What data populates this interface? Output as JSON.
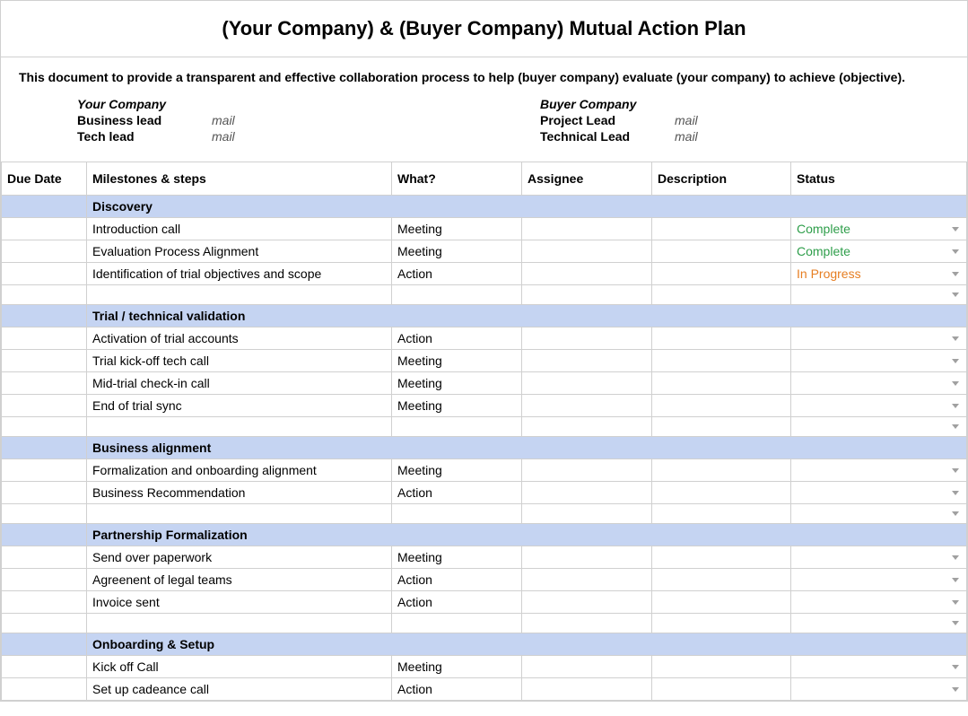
{
  "title": "(Your Company) & (Buyer Company) Mutual Action Plan",
  "intro": "This document to provide a transparent and effective collaboration process to help (buyer company) evaluate (your company) to achieve (objective).",
  "your_company": {
    "heading": "Your Company",
    "lead1_role": "Business lead",
    "lead1_mail": "mail",
    "lead2_role": "Tech lead",
    "lead2_mail": "mail"
  },
  "buyer_company": {
    "heading": "Buyer Company",
    "lead1_role": "Project Lead",
    "lead1_mail": "mail",
    "lead2_role": "Technical Lead",
    "lead2_mail": "mail"
  },
  "columns": {
    "due_date": "Due Date",
    "milestones": "Milestones & steps",
    "what": "What?",
    "assignee": "Assignee",
    "description": "Description",
    "status": "Status"
  },
  "status_labels": {
    "complete": "Complete",
    "in_progress": "In Progress"
  },
  "colors": {
    "section_bg": "#c5d4f2",
    "border": "#d0d0d0",
    "status_complete": "#2e9e4a",
    "status_progress": "#e67e22",
    "chevron": "#a0a0a0"
  },
  "sections": [
    {
      "name": "Discovery",
      "rows": [
        {
          "milestone": "Introduction call",
          "what": "Meeting",
          "status": "complete"
        },
        {
          "milestone": "Evaluation Process Alignment",
          "what": "Meeting",
          "status": "complete"
        },
        {
          "milestone": "Identification of trial objectives and scope",
          "what": "Action",
          "status": "in_progress"
        }
      ]
    },
    {
      "name": "Trial / technical validation",
      "rows": [
        {
          "milestone": "Activation of trial accounts",
          "what": "Action",
          "status": ""
        },
        {
          "milestone": "Trial kick-off tech call",
          "what": "Meeting",
          "status": ""
        },
        {
          "milestone": "Mid-trial check-in call",
          "what": "Meeting",
          "status": ""
        },
        {
          "milestone": "End of trial sync",
          "what": "Meeting",
          "status": ""
        }
      ]
    },
    {
      "name": "Business alignment",
      "rows": [
        {
          "milestone": "Formalization and onboarding alignment",
          "what": "Meeting",
          "status": ""
        },
        {
          "milestone": "Business Recommendation",
          "what": "Action",
          "status": ""
        }
      ]
    },
    {
      "name": "Partnership Formalization",
      "rows": [
        {
          "milestone": "Send over paperwork",
          "what": "Meeting",
          "status": ""
        },
        {
          "milestone": "Agreenent of legal teams",
          "what": "Action",
          "status": ""
        },
        {
          "milestone": "Invoice sent",
          "what": "Action",
          "status": ""
        }
      ]
    },
    {
      "name": "Onboarding & Setup",
      "rows": [
        {
          "milestone": "Kick off Call",
          "what": "Meeting",
          "status": ""
        },
        {
          "milestone": "Set up cadeance call",
          "what": "Action",
          "status": ""
        }
      ],
      "no_trailing_spacer": true
    }
  ]
}
